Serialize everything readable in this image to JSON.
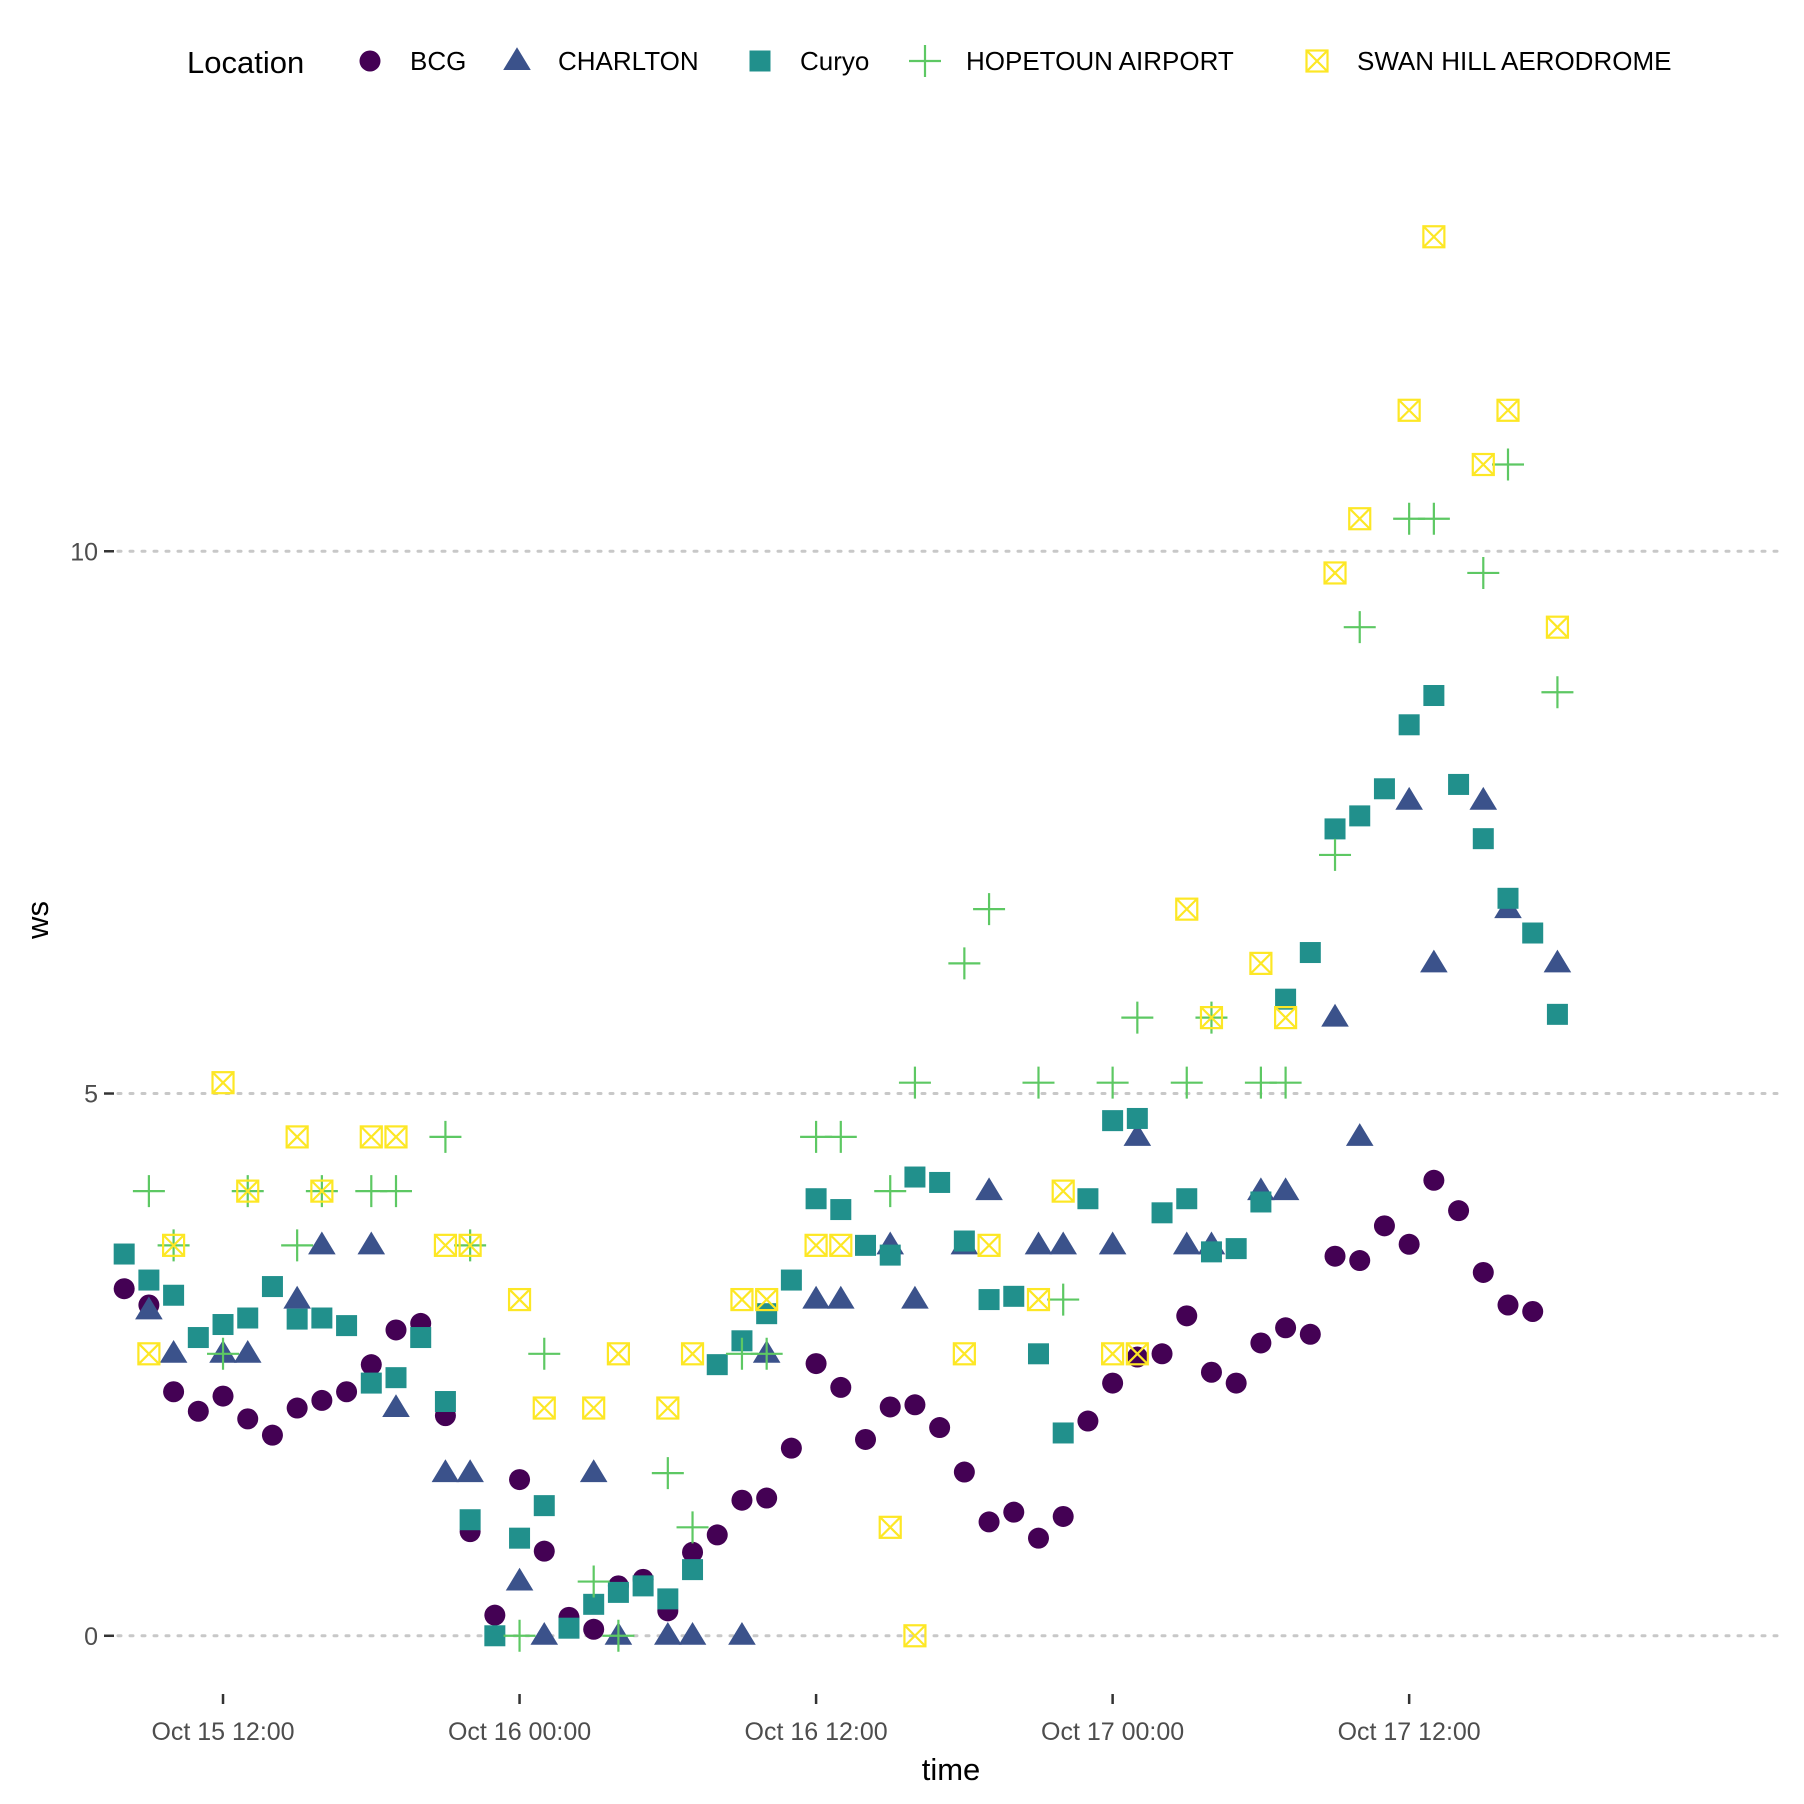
{
  "chart_data": {
    "type": "scatter",
    "title": "",
    "xlabel": "time",
    "ylabel": "ws",
    "legend": {
      "title": "Location",
      "position": "top"
    },
    "x_ticks": [
      {
        "value": "2023-10-15T12:00",
        "label": "Oct 15 12:00"
      },
      {
        "value": "2023-10-16T00:00",
        "label": "Oct 16 00:00"
      },
      {
        "value": "2023-10-16T12:00",
        "label": "Oct 16 12:00"
      },
      {
        "value": "2023-10-17T00:00",
        "label": "Oct 17 00:00"
      },
      {
        "value": "2023-10-17T12:00",
        "label": "Oct 17 12:00"
      }
    ],
    "y_ticks": [
      0,
      5,
      10
    ],
    "xlim": [
      "2023-10-15T07:45",
      "2023-10-18T03:15"
    ],
    "ylim": [
      -0.5,
      13.7
    ],
    "grid": {
      "major_y": true,
      "major_x": false,
      "style": "dotted"
    },
    "series": [
      {
        "name": "BCG",
        "color": "#440154",
        "shape": "circle",
        "points": [
          [
            "2023-10-15T08:00",
            3.2
          ],
          [
            "2023-10-15T09:00",
            3.05
          ],
          [
            "2023-10-15T10:00",
            2.25
          ],
          [
            "2023-10-15T11:00",
            2.07
          ],
          [
            "2023-10-15T12:00",
            2.21
          ],
          [
            "2023-10-15T13:00",
            2.0
          ],
          [
            "2023-10-15T14:00",
            1.85
          ],
          [
            "2023-10-15T15:00",
            2.1
          ],
          [
            "2023-10-15T16:00",
            2.17
          ],
          [
            "2023-10-15T17:00",
            2.25
          ],
          [
            "2023-10-15T18:00",
            2.5
          ],
          [
            "2023-10-15T19:00",
            2.82
          ],
          [
            "2023-10-15T20:00",
            2.88
          ],
          [
            "2023-10-15T21:00",
            2.03
          ],
          [
            "2023-10-15T22:00",
            0.96
          ],
          [
            "2023-10-15T23:00",
            0.19
          ],
          [
            "2023-10-16T00:00",
            1.44
          ],
          [
            "2023-10-16T01:00",
            0.78
          ],
          [
            "2023-10-16T02:00",
            0.17
          ],
          [
            "2023-10-16T03:00",
            0.06
          ],
          [
            "2023-10-16T04:00",
            0.46
          ],
          [
            "2023-10-16T05:00",
            0.52
          ],
          [
            "2023-10-16T06:00",
            0.23
          ],
          [
            "2023-10-16T07:00",
            0.77
          ],
          [
            "2023-10-16T08:00",
            0.93
          ],
          [
            "2023-10-16T09:00",
            1.25
          ],
          [
            "2023-10-16T10:00",
            1.27
          ],
          [
            "2023-10-16T11:00",
            1.73
          ],
          [
            "2023-10-16T12:00",
            2.51
          ],
          [
            "2023-10-16T13:00",
            2.29
          ],
          [
            "2023-10-16T14:00",
            1.81
          ],
          [
            "2023-10-16T15:00",
            2.11
          ],
          [
            "2023-10-16T16:00",
            2.13
          ],
          [
            "2023-10-16T17:00",
            1.92
          ],
          [
            "2023-10-16T18:00",
            1.51
          ],
          [
            "2023-10-16T19:00",
            1.05
          ],
          [
            "2023-10-16T20:00",
            1.14
          ],
          [
            "2023-10-16T21:00",
            0.9
          ],
          [
            "2023-10-16T22:00",
            1.1
          ],
          [
            "2023-10-16T23:00",
            1.98
          ],
          [
            "2023-10-17T00:00",
            2.33
          ],
          [
            "2023-10-17T01:00",
            2.57
          ],
          [
            "2023-10-17T02:00",
            2.6
          ],
          [
            "2023-10-17T03:00",
            2.95
          ],
          [
            "2023-10-17T04:00",
            2.43
          ],
          [
            "2023-10-17T05:00",
            2.33
          ],
          [
            "2023-10-17T06:00",
            2.7
          ],
          [
            "2023-10-17T07:00",
            2.84
          ],
          [
            "2023-10-17T08:00",
            2.78
          ],
          [
            "2023-10-17T09:00",
            3.5
          ],
          [
            "2023-10-17T10:00",
            3.46
          ],
          [
            "2023-10-17T11:00",
            3.78
          ],
          [
            "2023-10-17T12:00",
            3.61
          ],
          [
            "2023-10-17T13:00",
            4.2
          ],
          [
            "2023-10-17T14:00",
            3.92
          ],
          [
            "2023-10-17T15:00",
            3.35
          ],
          [
            "2023-10-17T16:00",
            3.05
          ],
          [
            "2023-10-17T17:00",
            2.99
          ]
        ]
      },
      {
        "name": "CHARLTON",
        "color": "#3b528b",
        "shape": "triangle",
        "points": [
          [
            "2023-10-15T09:00",
            3.0
          ],
          [
            "2023-10-15T10:00",
            2.6
          ],
          [
            "2023-10-15T12:00",
            2.6
          ],
          [
            "2023-10-15T13:00",
            2.6
          ],
          [
            "2023-10-15T15:00",
            3.1
          ],
          [
            "2023-10-15T16:00",
            3.6
          ],
          [
            "2023-10-15T18:00",
            3.6
          ],
          [
            "2023-10-15T19:00",
            2.1
          ],
          [
            "2023-10-15T21:00",
            1.5
          ],
          [
            "2023-10-15T22:00",
            1.5
          ],
          [
            "2023-10-16T00:00",
            0.5
          ],
          [
            "2023-10-16T01:00",
            0.0
          ],
          [
            "2023-10-16T03:00",
            1.5
          ],
          [
            "2023-10-16T04:00",
            0.0
          ],
          [
            "2023-10-16T06:00",
            0.0
          ],
          [
            "2023-10-16T07:00",
            0.0
          ],
          [
            "2023-10-16T09:00",
            0.0
          ],
          [
            "2023-10-16T10:00",
            2.6
          ],
          [
            "2023-10-16T12:00",
            3.1
          ],
          [
            "2023-10-16T13:00",
            3.1
          ],
          [
            "2023-10-16T15:00",
            3.6
          ],
          [
            "2023-10-16T16:00",
            3.1
          ],
          [
            "2023-10-16T18:00",
            3.6
          ],
          [
            "2023-10-16T19:00",
            4.1
          ],
          [
            "2023-10-16T21:00",
            3.6
          ],
          [
            "2023-10-16T22:00",
            3.6
          ],
          [
            "2023-10-17T00:00",
            3.6
          ],
          [
            "2023-10-17T01:00",
            4.6
          ],
          [
            "2023-10-17T03:00",
            3.6
          ],
          [
            "2023-10-17T04:00",
            3.6
          ],
          [
            "2023-10-17T06:00",
            4.1
          ],
          [
            "2023-10-17T07:00",
            4.1
          ],
          [
            "2023-10-17T09:00",
            5.7
          ],
          [
            "2023-10-17T10:00",
            4.6
          ],
          [
            "2023-10-17T12:00",
            7.7
          ],
          [
            "2023-10-17T13:00",
            6.2
          ],
          [
            "2023-10-17T15:00",
            7.7
          ],
          [
            "2023-10-17T16:00",
            6.7
          ],
          [
            "2023-10-17T18:00",
            6.2
          ]
        ]
      },
      {
        "name": "Curyo",
        "color": "#21908c",
        "shape": "square",
        "points": [
          [
            "2023-10-15T08:00",
            3.52
          ],
          [
            "2023-10-15T09:00",
            3.28
          ],
          [
            "2023-10-15T10:00",
            3.14
          ],
          [
            "2023-10-15T11:00",
            2.75
          ],
          [
            "2023-10-15T12:00",
            2.87
          ],
          [
            "2023-10-15T13:00",
            2.93
          ],
          [
            "2023-10-15T14:00",
            3.22
          ],
          [
            "2023-10-15T15:00",
            2.92
          ],
          [
            "2023-10-15T16:00",
            2.93
          ],
          [
            "2023-10-15T17:00",
            2.86
          ],
          [
            "2023-10-15T18:00",
            2.33
          ],
          [
            "2023-10-15T19:00",
            2.38
          ],
          [
            "2023-10-15T20:00",
            2.75
          ],
          [
            "2023-10-15T21:00",
            2.16
          ],
          [
            "2023-10-15T22:00",
            1.07
          ],
          [
            "2023-10-15T23:00",
            0.0
          ],
          [
            "2023-10-16T00:00",
            0.9
          ],
          [
            "2023-10-16T01:00",
            1.2
          ],
          [
            "2023-10-16T02:00",
            0.07
          ],
          [
            "2023-10-16T03:00",
            0.29
          ],
          [
            "2023-10-16T04:00",
            0.4
          ],
          [
            "2023-10-16T05:00",
            0.46
          ],
          [
            "2023-10-16T06:00",
            0.34
          ],
          [
            "2023-10-16T07:00",
            0.61
          ],
          [
            "2023-10-16T08:00",
            2.5
          ],
          [
            "2023-10-16T09:00",
            2.72
          ],
          [
            "2023-10-16T10:00",
            2.97
          ],
          [
            "2023-10-16T11:00",
            3.28
          ],
          [
            "2023-10-16T12:00",
            4.03
          ],
          [
            "2023-10-16T13:00",
            3.93
          ],
          [
            "2023-10-16T14:00",
            3.6
          ],
          [
            "2023-10-16T15:00",
            3.51
          ],
          [
            "2023-10-16T16:00",
            4.23
          ],
          [
            "2023-10-16T17:00",
            4.18
          ],
          [
            "2023-10-16T18:00",
            3.64
          ],
          [
            "2023-10-16T19:00",
            3.1
          ],
          [
            "2023-10-16T20:00",
            3.13
          ],
          [
            "2023-10-16T21:00",
            2.6
          ],
          [
            "2023-10-16T22:00",
            1.87
          ],
          [
            "2023-10-16T23:00",
            4.03
          ],
          [
            "2023-10-17T00:00",
            4.75
          ],
          [
            "2023-10-17T01:00",
            4.77
          ],
          [
            "2023-10-17T02:00",
            3.9
          ],
          [
            "2023-10-17T03:00",
            4.03
          ],
          [
            "2023-10-17T04:00",
            3.54
          ],
          [
            "2023-10-17T05:00",
            3.57
          ],
          [
            "2023-10-17T06:00",
            4.0
          ],
          [
            "2023-10-17T07:00",
            5.87
          ],
          [
            "2023-10-17T08:00",
            6.3
          ],
          [
            "2023-10-17T09:00",
            7.44
          ],
          [
            "2023-10-17T10:00",
            7.56
          ],
          [
            "2023-10-17T11:00",
            7.81
          ],
          [
            "2023-10-17T12:00",
            8.4
          ],
          [
            "2023-10-17T13:00",
            8.67
          ],
          [
            "2023-10-17T14:00",
            7.85
          ],
          [
            "2023-10-17T15:00",
            7.35
          ],
          [
            "2023-10-17T16:00",
            6.8
          ],
          [
            "2023-10-17T17:00",
            6.48
          ],
          [
            "2023-10-17T18:00",
            5.73
          ]
        ]
      },
      {
        "name": "HOPETOUN AIRPORT",
        "color": "#5dc863",
        "shape": "plus",
        "points": [
          [
            "2023-10-15T09:00",
            4.1
          ],
          [
            "2023-10-15T10:00",
            3.6
          ],
          [
            "2023-10-15T12:00",
            2.6
          ],
          [
            "2023-10-15T13:00",
            4.1
          ],
          [
            "2023-10-15T15:00",
            3.6
          ],
          [
            "2023-10-15T16:00",
            4.1
          ],
          [
            "2023-10-15T18:00",
            4.1
          ],
          [
            "2023-10-15T19:00",
            4.1
          ],
          [
            "2023-10-15T21:00",
            4.6
          ],
          [
            "2023-10-15T22:00",
            3.6
          ],
          [
            "2023-10-16T00:00",
            0.0
          ],
          [
            "2023-10-16T01:00",
            2.6
          ],
          [
            "2023-10-16T03:00",
            0.5
          ],
          [
            "2023-10-16T04:00",
            0.0
          ],
          [
            "2023-10-16T06:00",
            1.5
          ],
          [
            "2023-10-16T07:00",
            1.0
          ],
          [
            "2023-10-16T09:00",
            2.6
          ],
          [
            "2023-10-16T10:00",
            2.6
          ],
          [
            "2023-10-16T12:00",
            4.6
          ],
          [
            "2023-10-16T13:00",
            4.6
          ],
          [
            "2023-10-16T15:00",
            4.1
          ],
          [
            "2023-10-16T16:00",
            5.1
          ],
          [
            "2023-10-16T18:00",
            6.2
          ],
          [
            "2023-10-16T19:00",
            6.7
          ],
          [
            "2023-10-16T21:00",
            5.1
          ],
          [
            "2023-10-16T22:00",
            3.1
          ],
          [
            "2023-10-17T00:00",
            5.1
          ],
          [
            "2023-10-17T01:00",
            5.7
          ],
          [
            "2023-10-17T03:00",
            5.1
          ],
          [
            "2023-10-17T04:00",
            5.7
          ],
          [
            "2023-10-17T06:00",
            5.1
          ],
          [
            "2023-10-17T07:00",
            5.1
          ],
          [
            "2023-10-17T09:00",
            7.2
          ],
          [
            "2023-10-17T10:00",
            9.3
          ],
          [
            "2023-10-17T12:00",
            10.3
          ],
          [
            "2023-10-17T13:00",
            10.3
          ],
          [
            "2023-10-17T15:00",
            9.8
          ],
          [
            "2023-10-17T16:00",
            10.8
          ],
          [
            "2023-10-17T18:00",
            8.7
          ]
        ]
      },
      {
        "name": "SWAN HILL AERODROME",
        "color": "#fde725",
        "shape": "boxcross",
        "points": [
          [
            "2023-10-15T09:00",
            2.6
          ],
          [
            "2023-10-15T10:00",
            3.6
          ],
          [
            "2023-10-15T12:00",
            5.1
          ],
          [
            "2023-10-15T13:00",
            4.1
          ],
          [
            "2023-10-15T15:00",
            4.6
          ],
          [
            "2023-10-15T16:00",
            4.1
          ],
          [
            "2023-10-15T18:00",
            4.6
          ],
          [
            "2023-10-15T19:00",
            4.6
          ],
          [
            "2023-10-15T21:00",
            3.6
          ],
          [
            "2023-10-15T22:00",
            3.6
          ],
          [
            "2023-10-16T00:00",
            3.1
          ],
          [
            "2023-10-16T01:00",
            2.1
          ],
          [
            "2023-10-16T03:00",
            2.1
          ],
          [
            "2023-10-16T04:00",
            2.6
          ],
          [
            "2023-10-16T06:00",
            2.1
          ],
          [
            "2023-10-16T07:00",
            2.6
          ],
          [
            "2023-10-16T09:00",
            3.1
          ],
          [
            "2023-10-16T10:00",
            3.1
          ],
          [
            "2023-10-16T12:00",
            3.6
          ],
          [
            "2023-10-16T13:00",
            3.6
          ],
          [
            "2023-10-16T15:00",
            1.0
          ],
          [
            "2023-10-16T16:00",
            0.0
          ],
          [
            "2023-10-16T18:00",
            2.6
          ],
          [
            "2023-10-16T19:00",
            3.6
          ],
          [
            "2023-10-16T21:00",
            3.1
          ],
          [
            "2023-10-16T22:00",
            4.1
          ],
          [
            "2023-10-17T00:00",
            2.6
          ],
          [
            "2023-10-17T01:00",
            2.6
          ],
          [
            "2023-10-17T03:00",
            6.7
          ],
          [
            "2023-10-17T04:00",
            5.7
          ],
          [
            "2023-10-17T06:00",
            6.2
          ],
          [
            "2023-10-17T07:00",
            5.7
          ],
          [
            "2023-10-17T09:00",
            9.8
          ],
          [
            "2023-10-17T10:00",
            10.3
          ],
          [
            "2023-10-17T12:00",
            11.3
          ],
          [
            "2023-10-17T13:00",
            12.9
          ],
          [
            "2023-10-17T15:00",
            10.8
          ],
          [
            "2023-10-17T16:00",
            11.3
          ],
          [
            "2023-10-17T18:00",
            9.3
          ]
        ]
      }
    ]
  }
}
